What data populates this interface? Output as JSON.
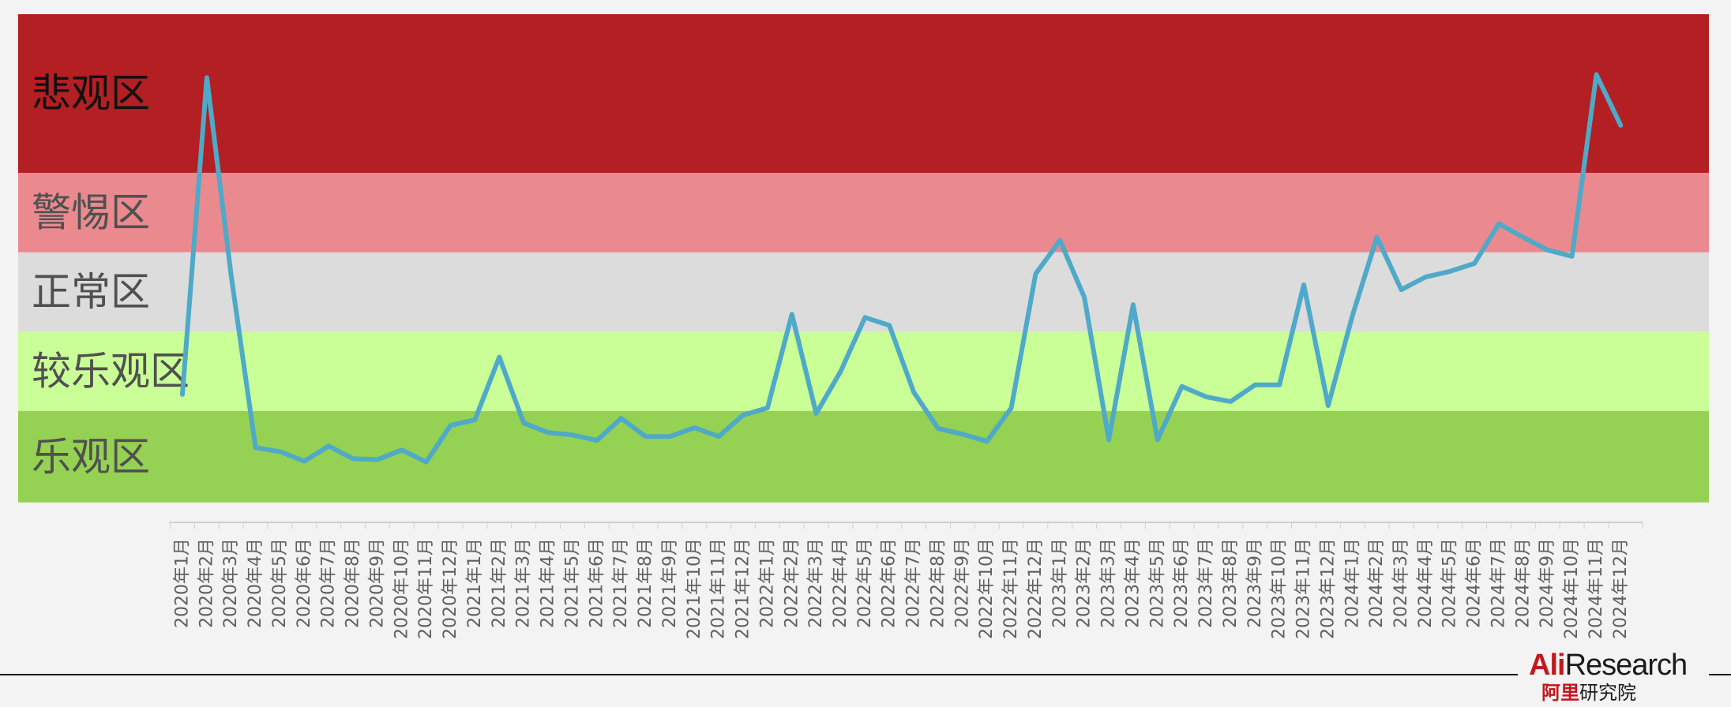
{
  "logo": {
    "brand_red": "Ali",
    "brand_dark": "Research",
    "cn_red": "阿里",
    "cn_dark": "研究院"
  },
  "colors": {
    "background": "#f3f3f3",
    "line": "#4fa9c8",
    "zone_pessimistic": "#b31f22",
    "zone_alert": "#ea8a8f",
    "zone_normal": "#dcdcdc",
    "zone_fairly_optimistic": "#caff98",
    "zone_optimistic": "#95d152"
  },
  "chart_data": {
    "type": "line",
    "title": "",
    "xlabel": "",
    "ylabel": "",
    "ylim": [
      0,
      100
    ],
    "grid": false,
    "legend": "none",
    "zones": [
      {
        "label": "悲观区",
        "from": 80,
        "to": 100,
        "color": "#b31f22",
        "text_color": "#111111"
      },
      {
        "label": "警惕区",
        "from": 70,
        "to": 80,
        "color": "#ea8a8f",
        "text_color": "#505050"
      },
      {
        "label": "正常区",
        "from": 60,
        "to": 70,
        "color": "#dcdcdc",
        "text_color": "#505050"
      },
      {
        "label": "较乐观区",
        "from": 50,
        "to": 60,
        "color": "#caff98",
        "text_color": "#505050"
      },
      {
        "label": "乐观区",
        "from": 38.5,
        "to": 50,
        "color": "#95d152",
        "text_color": "#505050"
      }
    ],
    "categories": [
      "2020年1月",
      "2020年2月",
      "2020年3月",
      "2020年4月",
      "2020年5月",
      "2020年6月",
      "2020年7月",
      "2020年8月",
      "2020年9月",
      "2020年10月",
      "2020年11月",
      "2020年12月",
      "2021年1月",
      "2021年2月",
      "2021年3月",
      "2021年4月",
      "2021年5月",
      "2021年6月",
      "2021年7月",
      "2021年8月",
      "2021年9月",
      "2021年10月",
      "2021年11月",
      "2021年12月",
      "2022年1月",
      "2022年2月",
      "2022年3月",
      "2022年4月",
      "2022年5月",
      "2022年6月",
      "2022年7月",
      "2022年8月",
      "2022年9月",
      "2022年10月",
      "2022年11月",
      "2022年12月",
      "2023年1月",
      "2023年2月",
      "2023年3月",
      "2023年4月",
      "2023年5月",
      "2023年6月",
      "2023年7月",
      "2023年8月",
      "2023年9月",
      "2023年10月",
      "2023年11月",
      "2023年12月",
      "2024年1月",
      "2024年2月",
      "2024年3月",
      "2024年4月",
      "2024年5月",
      "2024年6月",
      "2024年7月",
      "2024年8月",
      "2024年9月",
      "2024年10月",
      "2024年11月",
      "2024年12月"
    ],
    "series": [
      {
        "name": "",
        "values": [
          52.1,
          92.0,
          67.1,
          45.4,
          44.9,
          43.7,
          45.6,
          44.0,
          43.9,
          45.1,
          43.6,
          48.2,
          48.9,
          56.8,
          48.5,
          47.3,
          47.0,
          46.3,
          49.1,
          46.8,
          46.8,
          47.9,
          46.8,
          49.5,
          50.4,
          62.2,
          49.7,
          55.0,
          61.8,
          60.8,
          52.4,
          47.8,
          47.1,
          46.2,
          50.4,
          67.3,
          71.5,
          64.3,
          46.4,
          63.4,
          46.4,
          53.1,
          51.8,
          51.2,
          53.3,
          53.3,
          65.9,
          50.7,
          62.1,
          71.9,
          65.3,
          66.9,
          67.6,
          68.6,
          73.6,
          71.9,
          70.3,
          69.5,
          92.4,
          86.0
        ]
      }
    ]
  }
}
